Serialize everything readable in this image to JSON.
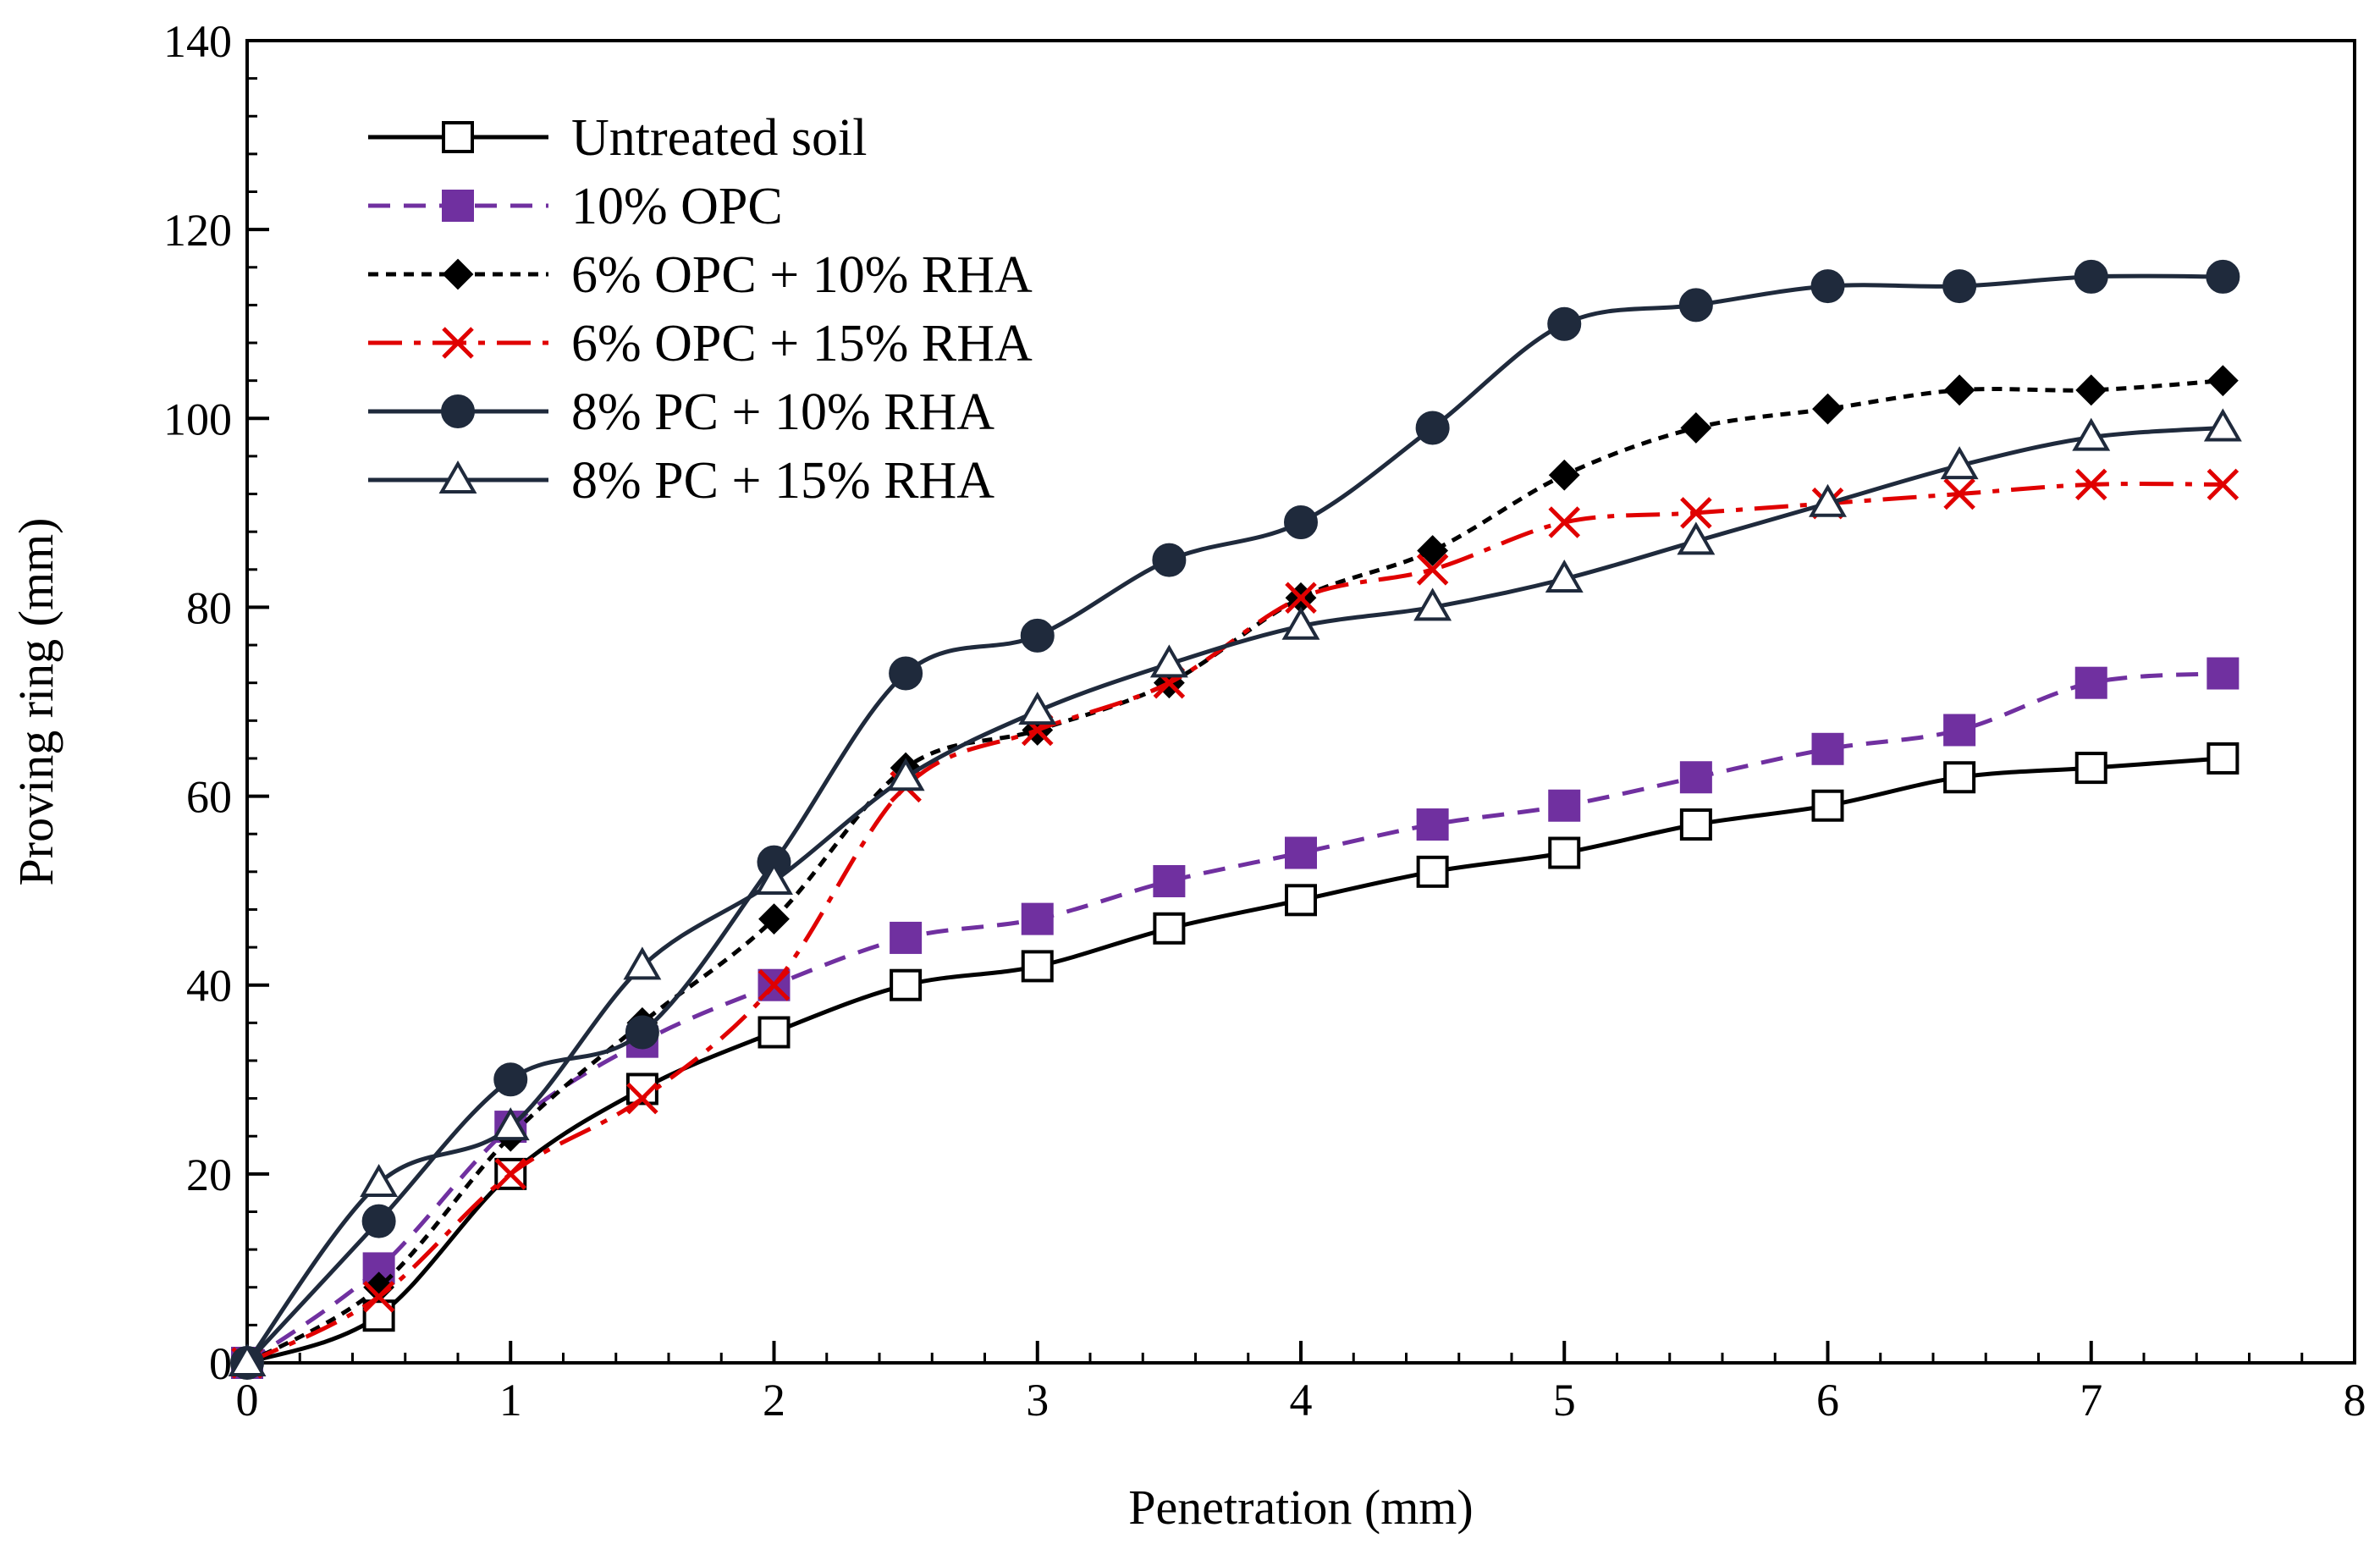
{
  "chart_data": {
    "type": "line",
    "title": "",
    "xlabel": "Penetration (mm)",
    "ylabel": "Proving ring (mm)",
    "xlim": [
      0,
      8
    ],
    "ylim": [
      0,
      140
    ],
    "xticks": [
      0,
      1,
      2,
      3,
      4,
      5,
      6,
      7,
      8
    ],
    "yticks": [
      0,
      20,
      40,
      60,
      80,
      100,
      120,
      140
    ],
    "x_minor_step": 0.2,
    "y_minor_step": 4,
    "grid": false,
    "legend_position": "top-left",
    "x": [
      0,
      0.5,
      1,
      1.5,
      2,
      2.5,
      3,
      3.5,
      4,
      4.5,
      5,
      5.5,
      6,
      6.5,
      7,
      7.5
    ],
    "series": [
      {
        "key": "untreated-soil",
        "name": "Untreated soil",
        "color": "#000000",
        "dash": "solid",
        "marker": "square-open",
        "values": [
          0,
          5,
          20,
          29,
          35,
          40,
          42,
          46,
          49,
          52,
          54,
          57,
          59,
          62,
          63,
          64
        ]
      },
      {
        "key": "10-opc",
        "name": "10% OPC",
        "color": "#7030A0",
        "dash": "dashed",
        "marker": "square-filled",
        "values": [
          0,
          10,
          25,
          34,
          40,
          45,
          47,
          51,
          54,
          57,
          59,
          62,
          65,
          67,
          72,
          73
        ]
      },
      {
        "key": "6-opc-10-rha",
        "name": "6% OPC + 10% RHA",
        "color": "#000000",
        "dash": "dotted",
        "marker": "diamond-filled",
        "values": [
          0,
          8,
          24,
          36,
          47,
          63,
          67,
          72,
          81,
          86,
          94,
          99,
          101,
          103,
          103,
          104
        ]
      },
      {
        "key": "6-opc-15-rha",
        "name": "6% OPC + 15% RHA",
        "color": "#E00000",
        "dash": "dashdot",
        "marker": "x",
        "values": [
          0,
          7,
          20,
          28,
          40,
          61,
          67,
          72,
          81,
          84,
          89,
          90,
          91,
          92,
          93,
          93
        ]
      },
      {
        "key": "8-pc-10-rha",
        "name": "8% PC + 10% RHA",
        "color": "#1F2A3C",
        "dash": "solid",
        "marker": "circle-filled",
        "values": [
          0,
          15,
          30,
          35,
          53,
          73,
          77,
          85,
          89,
          99,
          110,
          112,
          114,
          114,
          115,
          115
        ]
      },
      {
        "key": "8-pc-15-rha",
        "name": "8% PC + 15% RHA",
        "color": "#1F2A3C",
        "dash": "solid",
        "marker": "triangle-open",
        "values": [
          0,
          19,
          25,
          42,
          51,
          62,
          69,
          74,
          78,
          80,
          83,
          87,
          91,
          95,
          98,
          99
        ]
      }
    ]
  }
}
